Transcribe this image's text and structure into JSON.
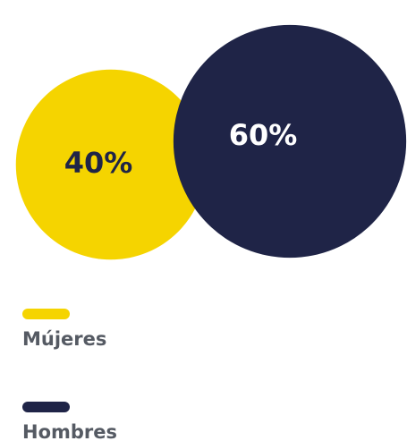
{
  "chart_data": {
    "type": "bubble",
    "categories": [
      "Mújeres",
      "Hombres"
    ],
    "values": [
      40,
      60
    ],
    "value_labels": [
      "40%",
      "60%"
    ],
    "colors": [
      "#f5d400",
      "#1f2447"
    ]
  }
}
